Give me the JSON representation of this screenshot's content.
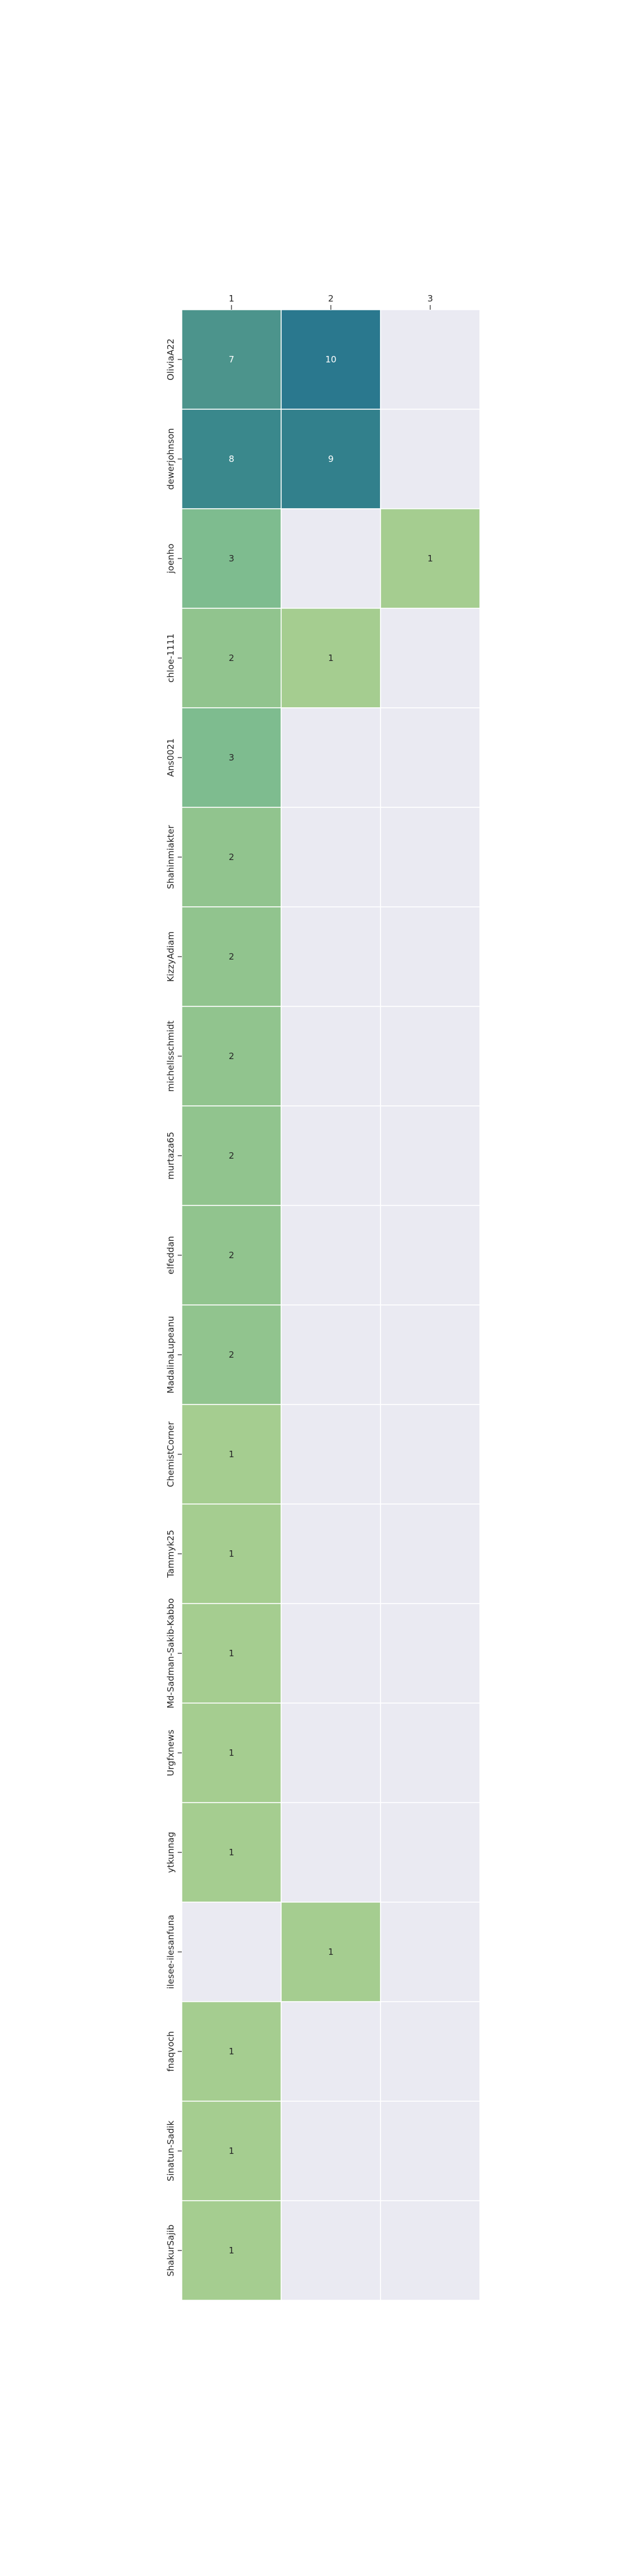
{
  "chart_data": {
    "type": "heatmap",
    "x_categories": [
      "1",
      "2",
      "3"
    ],
    "y_categories": [
      "OliviaA22",
      "dewerjohnson",
      "joenho",
      "chloe-1111",
      "Ans0021",
      "Shahinmiakter",
      "KizzyAdiam",
      "michellsschmidt",
      "murtaza65",
      "elfeddan",
      "MadalinaLupeanu",
      "ChemistCorner",
      "Tammyk25",
      "Md-Sadman-Sakib-Kabbo",
      "Urgfxnews",
      "ytkunnag",
      "ilesee-ilesanfuna",
      "fnaqvoch",
      "Sinatun-Sadik",
      "ShakurSajib"
    ],
    "values": [
      [
        7,
        10,
        null
      ],
      [
        8,
        9,
        null
      ],
      [
        3,
        null,
        1
      ],
      [
        2,
        1,
        null
      ],
      [
        3,
        null,
        null
      ],
      [
        2,
        null,
        null
      ],
      [
        2,
        null,
        null
      ],
      [
        2,
        null,
        null
      ],
      [
        2,
        null,
        null
      ],
      [
        2,
        null,
        null
      ],
      [
        2,
        null,
        null
      ],
      [
        1,
        null,
        null
      ],
      [
        1,
        null,
        null
      ],
      [
        1,
        null,
        null
      ],
      [
        1,
        null,
        null
      ],
      [
        1,
        null,
        null
      ],
      [
        null,
        1,
        null
      ],
      [
        1,
        null,
        null
      ],
      [
        1,
        null,
        null
      ],
      [
        1,
        null,
        null
      ]
    ],
    "title": "",
    "xlabel": "",
    "ylabel": "",
    "x_axis_position": "top",
    "colorscale": "crest",
    "missing_color": "#eaeaf2",
    "grid_color": "#ffffff"
  }
}
